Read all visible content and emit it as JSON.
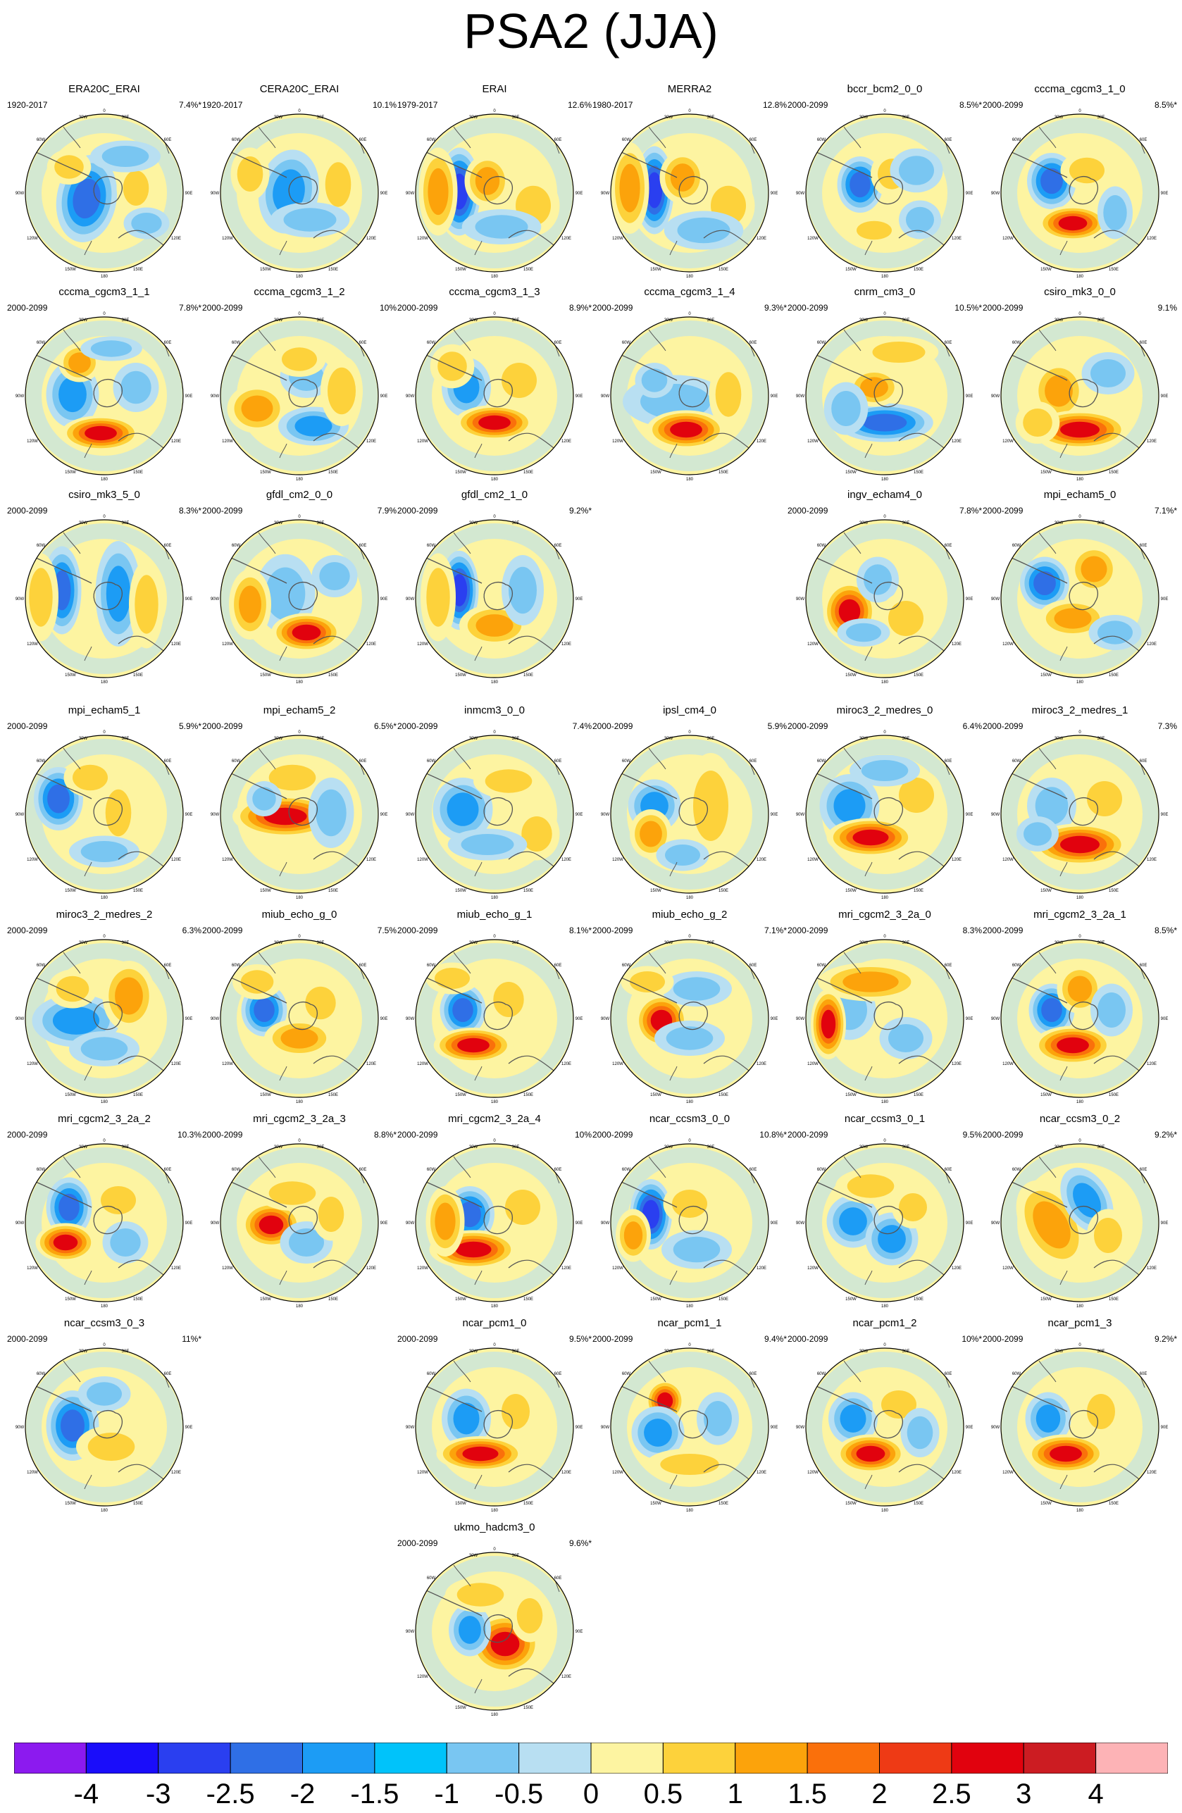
{
  "title": "PSA2 (JJA)",
  "map_labels": {
    "top": "0",
    "top_left": "30W",
    "top_right": "30E",
    "upper_left": "60W",
    "upper_right": "60E",
    "left": "90W",
    "right": "90E",
    "lower_left": "120W",
    "lower_right": "120E",
    "bottom_left": "150W",
    "bottom_right": "150E",
    "bottom": "180"
  },
  "colorbar": {
    "colors": [
      "#8c1aef",
      "#1a0dfa",
      "#2a3ff0",
      "#2f6fe6",
      "#1c9cf5",
      "#00c3fa",
      "#79c6f2",
      "#b8dff2",
      "#fdf4a1",
      "#fdd23b",
      "#fca30b",
      "#fa700b",
      "#ee3a15",
      "#e1020e",
      "#cc1c22",
      "#fdb3b6"
    ],
    "labels": [
      "-4",
      "-3",
      "-2.5",
      "-2",
      "-1.5",
      "-1",
      "-0.5",
      "0",
      "0.5",
      "1",
      "1.5",
      "2",
      "2.5",
      "3",
      "4"
    ]
  },
  "panels": [
    {
      "name": "ERA20C_ERAI",
      "period": "1920-2017",
      "pct": "7.4%*"
    },
    {
      "name": "CERA20C_ERAI",
      "period": "1920-2017",
      "pct": "10.1%"
    },
    {
      "name": "ERAI",
      "period": "1979-2017",
      "pct": "12.6%"
    },
    {
      "name": "MERRA2",
      "period": "1980-2017",
      "pct": "12.8%"
    },
    {
      "name": "bccr_bcm2_0_0",
      "period": "2000-2099",
      "pct": "8.5%*"
    },
    {
      "name": "cccma_cgcm3_1_0",
      "period": "2000-2099",
      "pct": "8.5%*"
    },
    {
      "name": "cccma_cgcm3_1_1",
      "period": "2000-2099",
      "pct": "7.8%*"
    },
    {
      "name": "cccma_cgcm3_1_2",
      "period": "2000-2099",
      "pct": "10%"
    },
    {
      "name": "cccma_cgcm3_1_3",
      "period": "2000-2099",
      "pct": "8.9%*"
    },
    {
      "name": "cccma_cgcm3_1_4",
      "period": "2000-2099",
      "pct": "9.3%*"
    },
    {
      "name": "cnrm_cm3_0",
      "period": "2000-2099",
      "pct": "10.5%*"
    },
    {
      "name": "csiro_mk3_0_0",
      "period": "2000-2099",
      "pct": "9.1%"
    },
    {
      "name": "csiro_mk3_5_0",
      "period": "2000-2099",
      "pct": "8.3%*"
    },
    {
      "name": "gfdl_cm2_0_0",
      "period": "2000-2099",
      "pct": "7.9%"
    },
    {
      "name": "gfdl_cm2_1_0",
      "period": "2000-2099",
      "pct": "9.2%*"
    },
    {
      "name": "ingv_echam4_0",
      "period": "2000-2099",
      "pct": "7.8%*"
    },
    {
      "name": "mpi_echam5_0",
      "period": "2000-2099",
      "pct": "7.1%*"
    },
    {
      "name": "mpi_echam5_1",
      "period": "2000-2099",
      "pct": "5.9%*"
    },
    {
      "name": "mpi_echam5_2",
      "period": "2000-2099",
      "pct": "6.5%*"
    },
    {
      "name": "inmcm3_0_0",
      "period": "2000-2099",
      "pct": "7.4%"
    },
    {
      "name": "ipsl_cm4_0",
      "period": "2000-2099",
      "pct": "5.9%"
    },
    {
      "name": "miroc3_2_medres_0",
      "period": "2000-2099",
      "pct": "6.4%"
    },
    {
      "name": "miroc3_2_medres_1",
      "period": "2000-2099",
      "pct": "7.3%"
    },
    {
      "name": "miroc3_2_medres_2",
      "period": "2000-2099",
      "pct": "6.3%"
    },
    {
      "name": "miub_echo_g_0",
      "period": "2000-2099",
      "pct": "7.5%"
    },
    {
      "name": "miub_echo_g_1",
      "period": "2000-2099",
      "pct": "8.1%*"
    },
    {
      "name": "miub_echo_g_2",
      "period": "2000-2099",
      "pct": "7.1%*"
    },
    {
      "name": "mri_cgcm2_3_2a_0",
      "period": "2000-2099",
      "pct": "8.3%"
    },
    {
      "name": "mri_cgcm2_3_2a_1",
      "period": "2000-2099",
      "pct": "8.5%*"
    },
    {
      "name": "mri_cgcm2_3_2a_2",
      "period": "2000-2099",
      "pct": "10.3%"
    },
    {
      "name": "mri_cgcm2_3_2a_3",
      "period": "2000-2099",
      "pct": "8.8%*"
    },
    {
      "name": "mri_cgcm2_3_2a_4",
      "period": "2000-2099",
      "pct": "10%"
    },
    {
      "name": "ncar_ccsm3_0_0",
      "period": "2000-2099",
      "pct": "10.8%*"
    },
    {
      "name": "ncar_ccsm3_0_1",
      "period": "2000-2099",
      "pct": "9.5%"
    },
    {
      "name": "ncar_ccsm3_0_2",
      "period": "2000-2099",
      "pct": "9.2%*"
    },
    {
      "name": "ncar_ccsm3_0_3",
      "period": "2000-2099",
      "pct": "11%*"
    },
    {
      "name": "ncar_pcm1_0",
      "period": "2000-2099",
      "pct": "9.5%*"
    },
    {
      "name": "ncar_pcm1_1",
      "period": "2000-2099",
      "pct": "9.4%*"
    },
    {
      "name": "ncar_pcm1_2",
      "period": "2000-2099",
      "pct": "10%*"
    },
    {
      "name": "ncar_pcm1_3",
      "period": "2000-2099",
      "pct": "9.2%*"
    },
    {
      "name": "ukmo_hadcm3_0",
      "period": "2000-2099",
      "pct": "9.6%*"
    }
  ]
}
